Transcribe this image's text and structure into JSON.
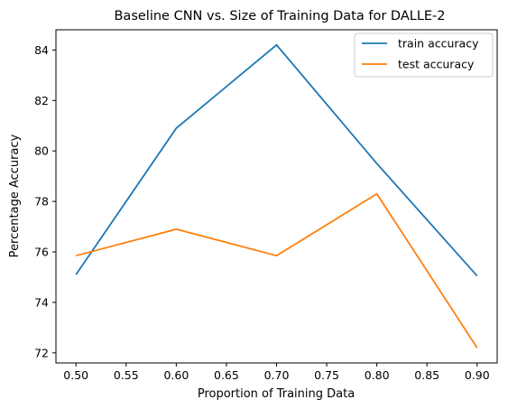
{
  "chart_data": {
    "type": "line",
    "title": "Baseline CNN vs. Size of Training Data for DALLE-2",
    "xlabel": "Proportion of Training Data",
    "ylabel": "Percentage Accuracy",
    "x": [
      0.5,
      0.6,
      0.7,
      0.8,
      0.9
    ],
    "xlim": [
      0.48,
      0.92
    ],
    "ylim": [
      71.6,
      84.8
    ],
    "xticks": [
      "0.50",
      "0.55",
      "0.60",
      "0.65",
      "0.70",
      "0.75",
      "0.80",
      "0.85",
      "0.90"
    ],
    "yticks": [
      "72",
      "74",
      "76",
      "78",
      "80",
      "82",
      "84"
    ],
    "grid": false,
    "legend": "top-right",
    "series": [
      {
        "name": "train accuracy",
        "color": "#1f77b4",
        "values": [
          75.1,
          80.9,
          84.2,
          79.5,
          75.05
        ]
      },
      {
        "name": "test accuracy",
        "color": "#ff7f0e",
        "values": [
          75.85,
          76.9,
          75.85,
          78.3,
          72.2
        ]
      }
    ]
  }
}
